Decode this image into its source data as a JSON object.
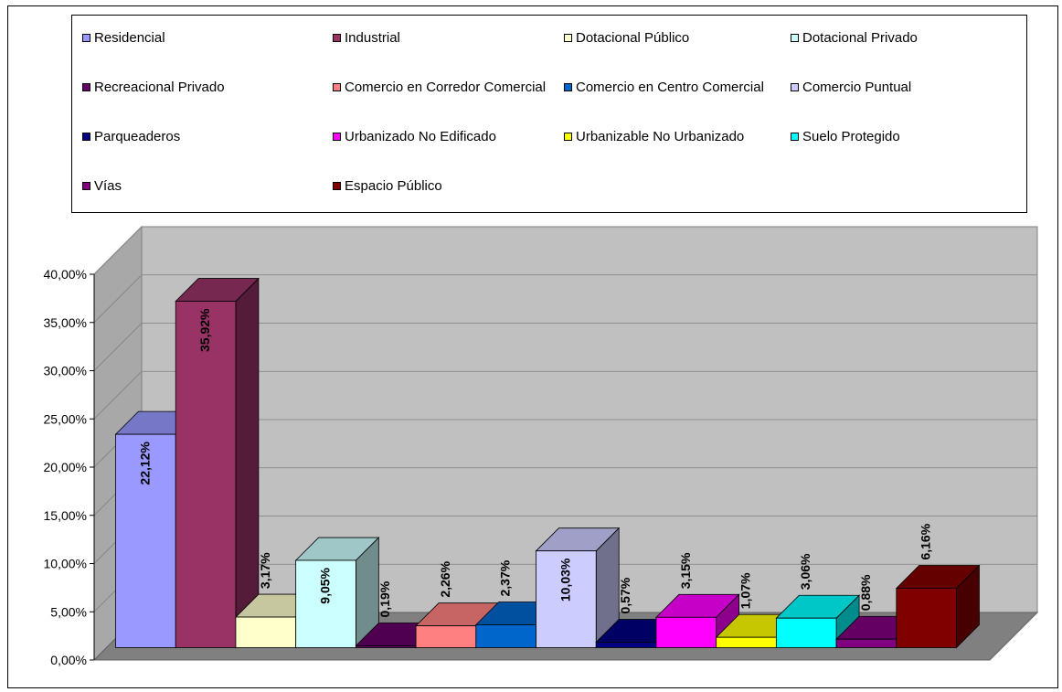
{
  "chart_data": {
    "type": "bar",
    "title": "",
    "xlabel": "",
    "ylabel": "",
    "ylim": [
      0,
      40
    ],
    "yticks": [
      "0,00%",
      "5,00%",
      "10,00%",
      "15,00%",
      "20,00%",
      "25,00%",
      "30,00%",
      "35,00%",
      "40,00%"
    ],
    "grid": true,
    "legend_position": "top",
    "categories": [
      "Residencial",
      "Industrial",
      "Dotacional Público",
      "Dotacional Privado",
      "Recreacional Privado",
      "Comercio en Corredor Comercial",
      "Comercio en Centro Comercial",
      "Comercio Puntual",
      "Parqueaderos",
      "Urbanizado No Edificado",
      "Urbanizable No Urbanizado",
      "Suelo Protegido",
      "Vías",
      "Espacio Público"
    ],
    "values": [
      22.12,
      35.92,
      3.17,
      9.05,
      0.19,
      2.26,
      2.37,
      10.03,
      0.57,
      3.15,
      1.07,
      3.06,
      0.88,
      6.16
    ],
    "labels": [
      "22,12%",
      "35,92%",
      "3,17%",
      "9,05%",
      "0,19%",
      "2,26%",
      "2,37%",
      "10,03%",
      "0,57%",
      "3,15%",
      "1,07%",
      "3,06%",
      "0,88%",
      "6,16%"
    ],
    "colors": [
      "#9999ff",
      "#993366",
      "#ffffcc",
      "#ccffff",
      "#660066",
      "#ff8080",
      "#0066cc",
      "#ccccff",
      "#000080",
      "#ff00ff",
      "#ffff00",
      "#00ffff",
      "#800080",
      "#800000"
    ]
  },
  "legend": {
    "items": [
      "Residencial",
      "Industrial",
      "Dotacional Público",
      "Dotacional Privado",
      "Recreacional Privado",
      "Comercio en Corredor Comercial",
      "Comercio en Centro Comercial",
      "Comercio Puntual",
      "Parqueaderos",
      "Urbanizado No Edificado",
      "Urbanizable No Urbanizado",
      "Suelo Protegido",
      "Vías",
      "Espacio Público"
    ]
  }
}
